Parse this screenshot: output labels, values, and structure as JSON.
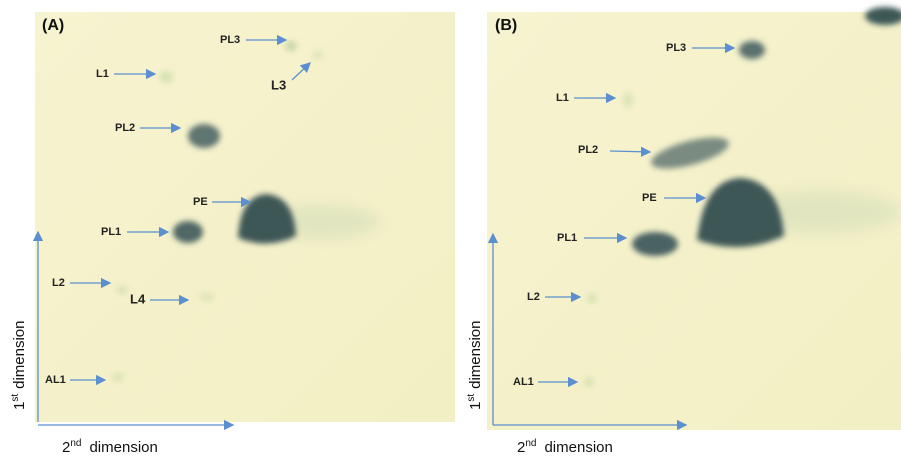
{
  "panels": [
    {
      "label": "(A)",
      "spots": [
        "PL3",
        "L3",
        "L1",
        "PL2",
        "PE",
        "PL1",
        "L2",
        "L4",
        "AL1"
      ],
      "y_axis": {
        "base": "1",
        "sup": "st",
        "text": "dimension"
      },
      "x_axis": {
        "base": "2",
        "sup": "nd",
        "text": "dimension"
      }
    },
    {
      "label": "(B)",
      "spots": [
        "PL3",
        "L1",
        "PL2",
        "PE",
        "PL1",
        "L2",
        "AL1"
      ],
      "y_axis": {
        "base": "1",
        "sup": "st",
        "text": "dimension"
      },
      "x_axis": {
        "base": "2",
        "sup": "nd",
        "text": "dimension"
      }
    }
  ]
}
